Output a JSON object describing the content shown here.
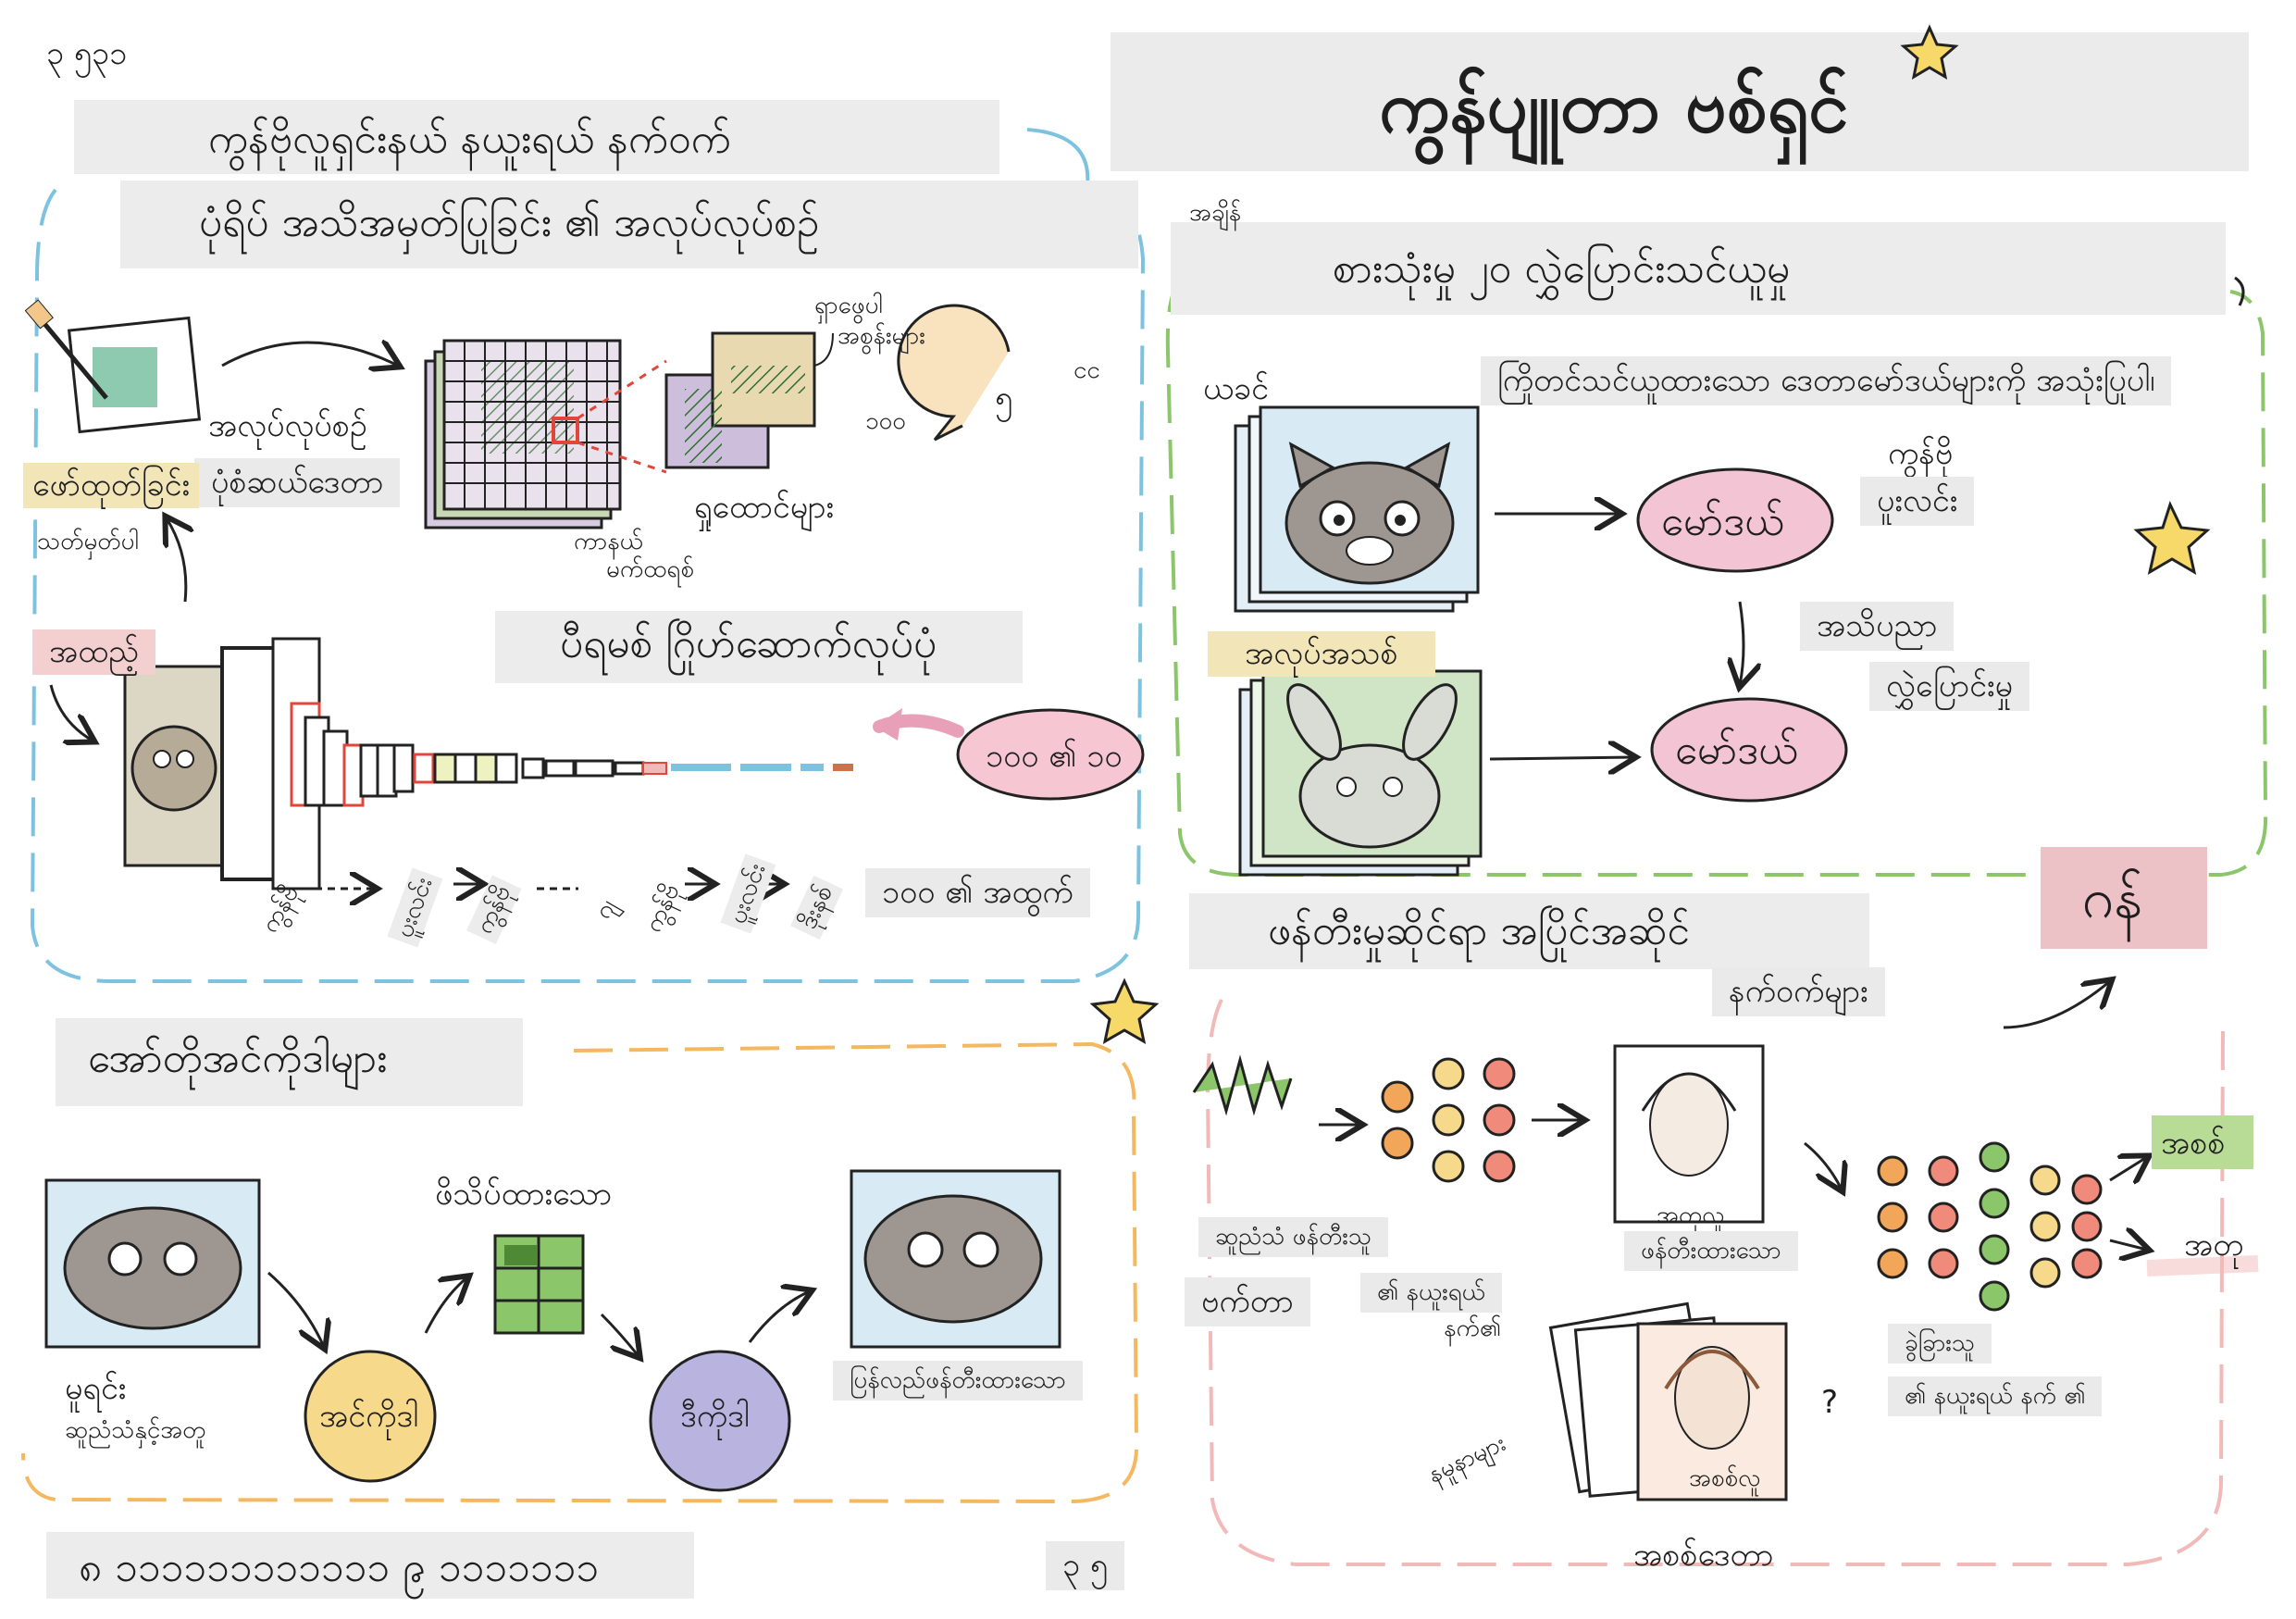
{
  "header": {
    "corner_note": "၃ ၅၃၁",
    "main_title": "ကွန်ပျူတာ ဗစ်ရှင်"
  },
  "cnn_panel": {
    "title": "ကွန်ဗိုလူရှင်းနယ် နယူးရယ် နက်ဝက်",
    "subtitle": "ပုံရိပ် အသိအမှတ်ပြုခြင်း ၏ အလုပ်လုပ်စဉ်",
    "process_label": "အလုပ်လုပ်စဉ်",
    "preprocess_label": "ပုံစံဆယ်ဒေတာ",
    "grid_label_top": "ရှာဖွေပါ",
    "grid_label_top2": "အစွန်းများ",
    "kernel_label": "ကာနယ်",
    "kernel_label2": "မက်ထရစ်",
    "features_label": "ရှုထောင်များ",
    "small_tag": "၁၀၀",
    "speech_digit": "၅",
    "side_marks": "ငင",
    "detect_label": "ဖော်ထုတ်ခြင်း",
    "mark_label": "သတ်မှတ်ပါ",
    "input_label": "အထည့်",
    "pyramid_label": "ပီရမစ် ဂြိုဟ်ဆောက်လုပ်ပုံ",
    "output_bubble": "၁၀၀ ၏ ၁၀",
    "layers": [
      "ကွန်ဗို",
      "ပူးလင်း",
      "ကွန်ဗို",
      "ဂျ",
      "ကွန်ဗို",
      "ပူးလင်း",
      "ဒိုးနစ်"
    ],
    "output_label": "၁၀၀ ၏ အထွက်"
  },
  "transfer_panel": {
    "time_label": "အချိန်",
    "title": "စားသုံးမှု ၂၀ လွှဲပြောင်းသင်ယူမှု",
    "trained_label": "ယခင်",
    "description": "ကြိုတင်သင်ယူထားသော ဒေတာမော်ဒယ်များကို အသုံးပြုပါ၊",
    "new_label": "အလုပ်အသစ်",
    "model_label": "မော်ဒယ်",
    "model_label2": "မော်ဒယ်",
    "cnn_note": "ကွန်ဗို",
    "cnn_note2": "ပူးလင်း",
    "knowledge": "အသိပညာ",
    "transfer": "လွှဲပြောင်းမှု"
  },
  "autoencoder_panel": {
    "title": "အော်တိုအင်ကိုဒါများ",
    "compressed": "ဖိသိပ်ထားသော",
    "original": "မူရင်း",
    "original_sub": "ဆူညံသံနှင့်အတူ",
    "encoder": "အင်ကိုဒါ",
    "decoder": "ဒီကိုဒါ",
    "reconstructed": "ပြန်လည်ဖန်တီးထားသော"
  },
  "gan_panel": {
    "title": "ဖန်တီးမှုဆိုင်ရာ အပြိုင်အဆိုင်",
    "title2": "နက်ဝက်များ",
    "gan_label": "ဂန်",
    "generator_label": "ဆူညံသံ ဖန်တီးသူ",
    "vector_label": "ဗက်တာ",
    "nn_label": "၏ နယူးရယ်",
    "nn_label2": "နက်၏",
    "fake_caption": "အတုလူ",
    "generated_label": "ဖန်တီးထားသော",
    "real_caption": "အစစ်လူ",
    "samples_label": "နမူနာများ",
    "question": "?",
    "discriminator": "ခွဲခြားသူ",
    "discriminator_nn": "၏ နယူးရယ် နက် ၏",
    "real_out": "အစစ်",
    "fake_out": "အတု",
    "real_data": "အစစ်ဒေတာ"
  },
  "footer": {
    "left_note": "၈ ၁၁၁၁၁၁၁၁၁၁၁၁ ၉ ၁၁၁၁၁၁၁",
    "right_note": "၃ ၅"
  },
  "colors": {
    "blue_dash": "#7dc3e0",
    "green_dash": "#8cc66a",
    "orange_dash": "#f4b860",
    "pink_dash": "#f2b9b9",
    "pink_blob": "#e8a0b8",
    "yellow_circle": "#f6d98a",
    "purple_circle": "#b9b3e0",
    "gan_tag": "#ecc2c6",
    "green_tag": "#b8dc95"
  }
}
